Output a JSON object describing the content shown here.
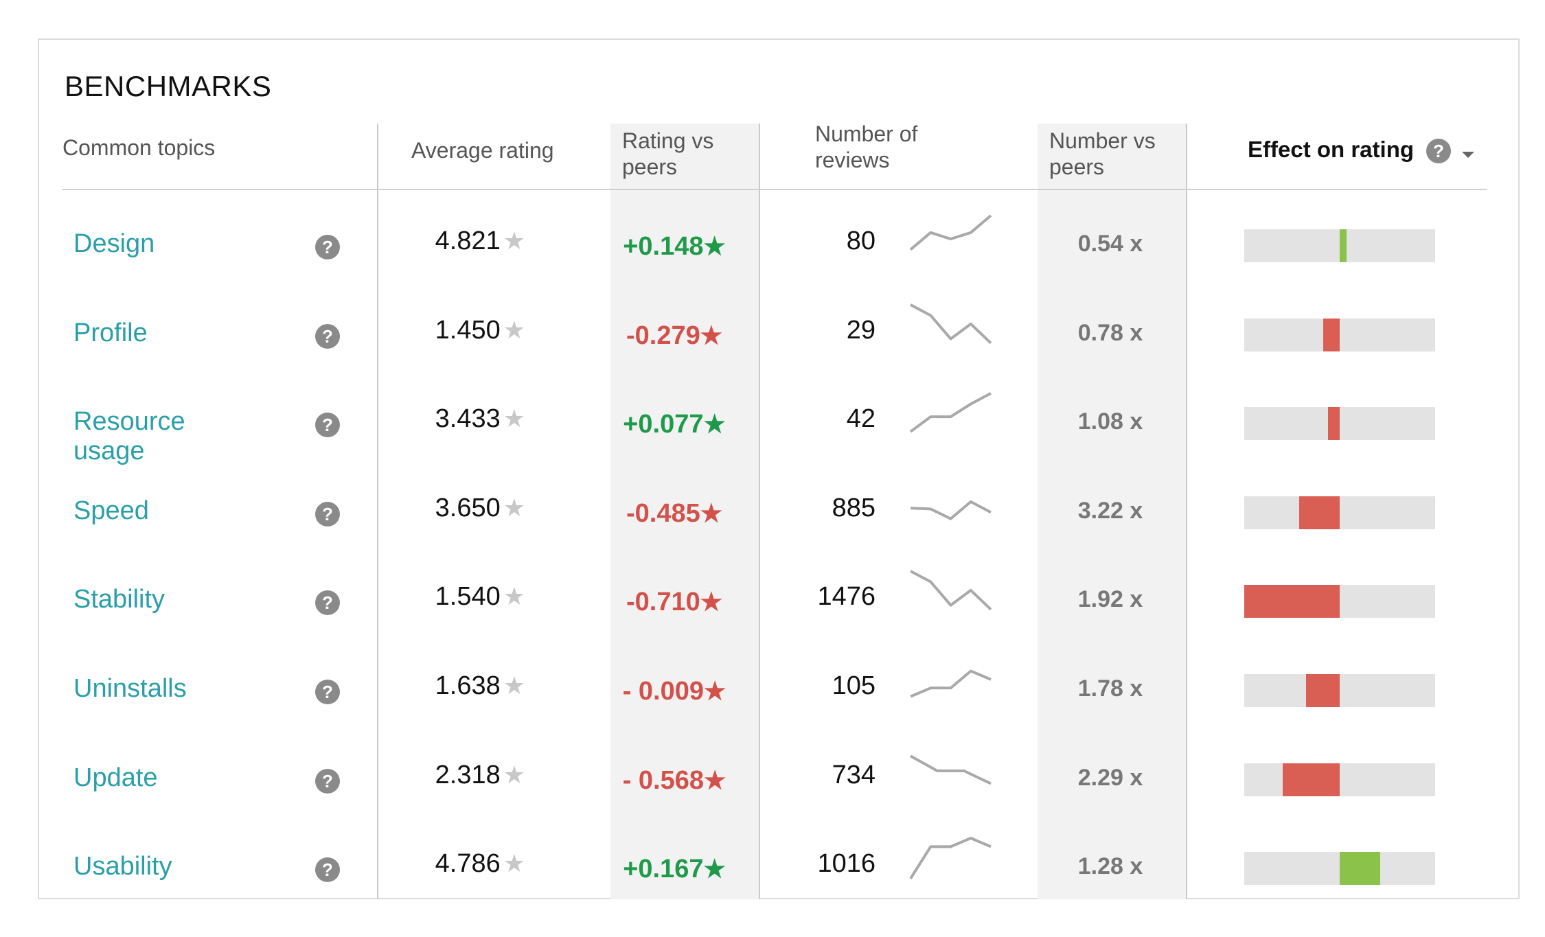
{
  "title": "BENCHMARKS",
  "headers": {
    "topics": "Common topics",
    "avg_rating": "Average rating",
    "rating_vs_peers_l1": "Rating vs",
    "rating_vs_peers_l2": "peers",
    "num_reviews_l1": "Number of",
    "num_reviews_l2": "reviews",
    "number_vs_peers_l1": "Number vs",
    "number_vs_peers_l2": "peers",
    "effect": "Effect on rating",
    "help_icon": "?"
  },
  "colors": {
    "positive": "#1f9a4a",
    "negative": "#d2514a",
    "bar_positive": "#8bc34a",
    "bar_negative": "#d95f55",
    "topic": "#2a9fa8"
  },
  "star_glyph": "★",
  "rows": [
    {
      "topic": "Design",
      "rating": "4.821",
      "peers": "+0.148",
      "peers_sign": "pos",
      "count": "80",
      "trend": [
        0.2,
        0.6,
        0.45,
        0.6,
        1.0
      ],
      "mult": "0.54 x",
      "effect": 0.015
    },
    {
      "topic": "Profile",
      "rating": "1.450",
      "peers": "-0.279",
      "peers_sign": "neg",
      "count": "29",
      "trend": [
        1.0,
        0.75,
        0.2,
        0.55,
        0.1
      ],
      "mult": "0.78 x",
      "effect": -0.035
    },
    {
      "topic": "Resource usage",
      "rating": "3.433",
      "peers": "+0.077",
      "peers_sign": "pos",
      "count": "42",
      "trend": [
        0.1,
        0.45,
        0.45,
        0.75,
        1.0
      ],
      "mult": "1.08 x",
      "effect": -0.025
    },
    {
      "topic": "Speed",
      "rating": "3.650",
      "peers": "-0.485",
      "peers_sign": "neg",
      "count": "885",
      "trend": [
        0.4,
        0.38,
        0.15,
        0.55,
        0.3
      ],
      "mult": "3.22 x",
      "effect": -0.085
    },
    {
      "topic": "Stability",
      "rating": "1.540",
      "peers": "-0.710",
      "peers_sign": "neg",
      "count": "1476",
      "trend": [
        1.0,
        0.75,
        0.2,
        0.55,
        0.1
      ],
      "mult": "1.92 x",
      "effect": -0.2
    },
    {
      "topic": "Uninstalls",
      "rating": "1.638",
      "peers": "- 0.009",
      "peers_sign": "neg",
      "count": "105",
      "trend": [
        0.15,
        0.35,
        0.35,
        0.75,
        0.55
      ],
      "mult": "1.78 x",
      "effect": -0.07
    },
    {
      "topic": "Update",
      "rating": "2.318",
      "peers": "- 0.568",
      "peers_sign": "neg",
      "count": "734",
      "trend": [
        0.85,
        0.5,
        0.5,
        0.2
      ],
      "mult": "2.29 x",
      "effect": -0.12
    },
    {
      "topic": "Usability",
      "rating": "4.786",
      "peers": "+0.167",
      "peers_sign": "pos",
      "count": "1016",
      "trend": [
        0.05,
        0.8,
        0.8,
        1.0,
        0.8
      ],
      "mult": "1.28 x",
      "effect": 0.085
    }
  ]
}
